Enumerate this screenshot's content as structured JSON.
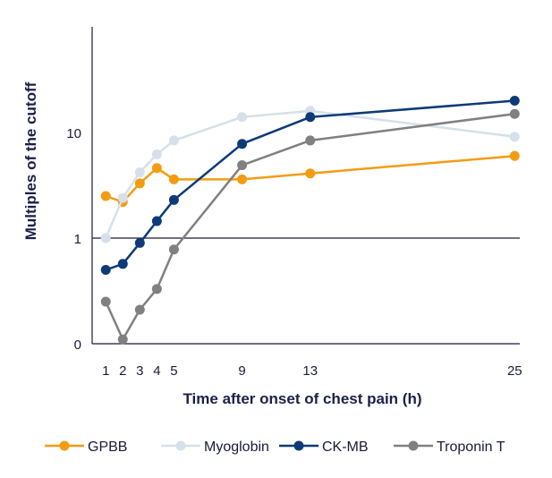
{
  "chart_data": {
    "type": "line",
    "xlabel": "Time after onset of chest pain (h)",
    "ylabel": "Multiples of the cutoff",
    "x_ticks": [
      1,
      2,
      3,
      4,
      5,
      9,
      13,
      25
    ],
    "x_tick_labels": [
      "1",
      "2",
      "3",
      "4",
      "5",
      "9",
      "13",
      "25"
    ],
    "y_ticks": [
      0.1,
      1,
      10
    ],
    "y_tick_labels": [
      "0",
      "1",
      "10"
    ],
    "y_scale": "log",
    "xlim": [
      0.2,
      25.3
    ],
    "ylim": [
      0.1,
      100
    ],
    "reference_line_y": 1,
    "legend_position": "bottom",
    "grid": false,
    "series": [
      {
        "name": "GPBB",
        "color": "#f39c12",
        "x": [
          1,
          2,
          3,
          4,
          5,
          9,
          13,
          25
        ],
        "y": [
          2.5,
          2.2,
          3.3,
          4.6,
          3.6,
          3.6,
          4.1,
          6
        ]
      },
      {
        "name": "Myoglobin",
        "color": "#d6e0ea",
        "x": [
          1,
          2,
          3,
          4,
          5,
          9,
          13,
          25
        ],
        "y": [
          1.0,
          2.4,
          4.2,
          6.2,
          8.4,
          14,
          16,
          9.1
        ]
      },
      {
        "name": "CK-MB",
        "color": "#0d3a78",
        "x": [
          1,
          2,
          3,
          4,
          5,
          9,
          13,
          25
        ],
        "y": [
          0.5,
          0.57,
          0.9,
          1.45,
          2.3,
          7.8,
          14,
          20
        ]
      },
      {
        "name": "Troponin T",
        "color": "#808080",
        "x": [
          1,
          2,
          3,
          4,
          5,
          9,
          13,
          25
        ],
        "y": [
          0.25,
          0.11,
          0.21,
          0.33,
          0.78,
          4.9,
          8.4,
          15
        ]
      }
    ]
  }
}
